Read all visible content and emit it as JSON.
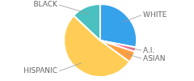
{
  "chart_data": {
    "type": "pie",
    "categories": [
      "WHITE",
      "A.I.",
      "ASIAN",
      "HISPANIC",
      "BLACK"
    ],
    "values": [
      28,
      2,
      5,
      52,
      13
    ]
  }
}
